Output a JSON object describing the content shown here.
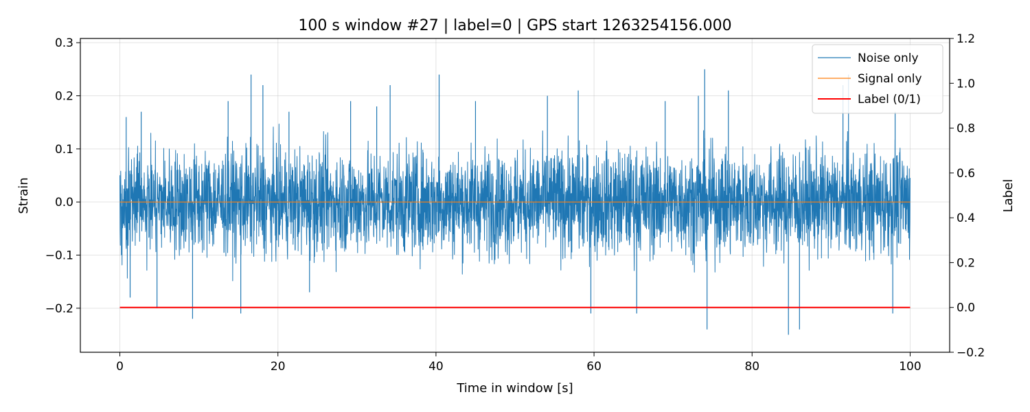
{
  "chart_data": {
    "type": "line",
    "title": "100 s window #27 | label=0 | GPS start 1263254156.000",
    "xlabel": "Time in window [s]",
    "ylabel": "Strain",
    "y2label": "Label",
    "xlim": [
      -5,
      105
    ],
    "ylim": [
      -0.283,
      0.308
    ],
    "y2lim": [
      -0.2,
      1.2
    ],
    "xticks": [
      0,
      20,
      40,
      60,
      80,
      100
    ],
    "xtick_labels": [
      "0",
      "20",
      "40",
      "60",
      "80",
      "100"
    ],
    "yticks": [
      0.3,
      0.2,
      0.1,
      0.0,
      -0.1,
      -0.2
    ],
    "ytick_labels": [
      "0.3",
      "0.2",
      "0.1",
      "0.0",
      "−0.1",
      "−0.2"
    ],
    "y2ticks": [
      1.2,
      1.0,
      0.8,
      0.6,
      0.4,
      0.2,
      0.0,
      -0.2
    ],
    "y2tick_labels": [
      "1.2",
      "1.0",
      "0.8",
      "0.6",
      "0.4",
      "0.2",
      "0.0",
      "−0.2"
    ],
    "grid": true,
    "legend_position": "top-right",
    "series": [
      {
        "name": "Noise only",
        "axis": "left",
        "color": "#1f77b4",
        "style": "dense noise, typical amplitude about ±0.10, peaks near ±0.25",
        "x_range": [
          0,
          100
        ],
        "peaks": [
          {
            "x": 0.8,
            "y": 0.16
          },
          {
            "x": 1.3,
            "y": -0.18
          },
          {
            "x": 2.7,
            "y": 0.17
          },
          {
            "x": 4.7,
            "y": -0.2
          },
          {
            "x": 9.2,
            "y": -0.22
          },
          {
            "x": 13.7,
            "y": 0.19
          },
          {
            "x": 15.3,
            "y": -0.21
          },
          {
            "x": 16.6,
            "y": 0.24
          },
          {
            "x": 18.1,
            "y": 0.22
          },
          {
            "x": 21.4,
            "y": 0.17
          },
          {
            "x": 24.0,
            "y": -0.17
          },
          {
            "x": 29.2,
            "y": 0.19
          },
          {
            "x": 32.5,
            "y": 0.18
          },
          {
            "x": 34.2,
            "y": 0.22
          },
          {
            "x": 40.4,
            "y": 0.24
          },
          {
            "x": 45.0,
            "y": 0.19
          },
          {
            "x": 54.1,
            "y": 0.2
          },
          {
            "x": 58.0,
            "y": 0.21
          },
          {
            "x": 59.6,
            "y": -0.21
          },
          {
            "x": 65.4,
            "y": -0.21
          },
          {
            "x": 69.0,
            "y": 0.19
          },
          {
            "x": 73.2,
            "y": 0.2
          },
          {
            "x": 74.0,
            "y": 0.25
          },
          {
            "x": 74.3,
            "y": -0.24
          },
          {
            "x": 77.0,
            "y": 0.21
          },
          {
            "x": 84.6,
            "y": -0.25
          },
          {
            "x": 86.0,
            "y": -0.24
          },
          {
            "x": 91.5,
            "y": 0.22
          },
          {
            "x": 92.2,
            "y": 0.24
          },
          {
            "x": 97.8,
            "y": -0.21
          },
          {
            "x": 98.1,
            "y": 0.17
          }
        ]
      },
      {
        "name": "Signal only",
        "axis": "left",
        "color": "#ff7f0e",
        "x": [
          0,
          100
        ],
        "y": [
          0,
          0
        ]
      },
      {
        "name": "Label (0/1)",
        "axis": "right",
        "color": "#ff0000",
        "x": [
          0,
          100
        ],
        "y": [
          0,
          0
        ]
      }
    ]
  }
}
